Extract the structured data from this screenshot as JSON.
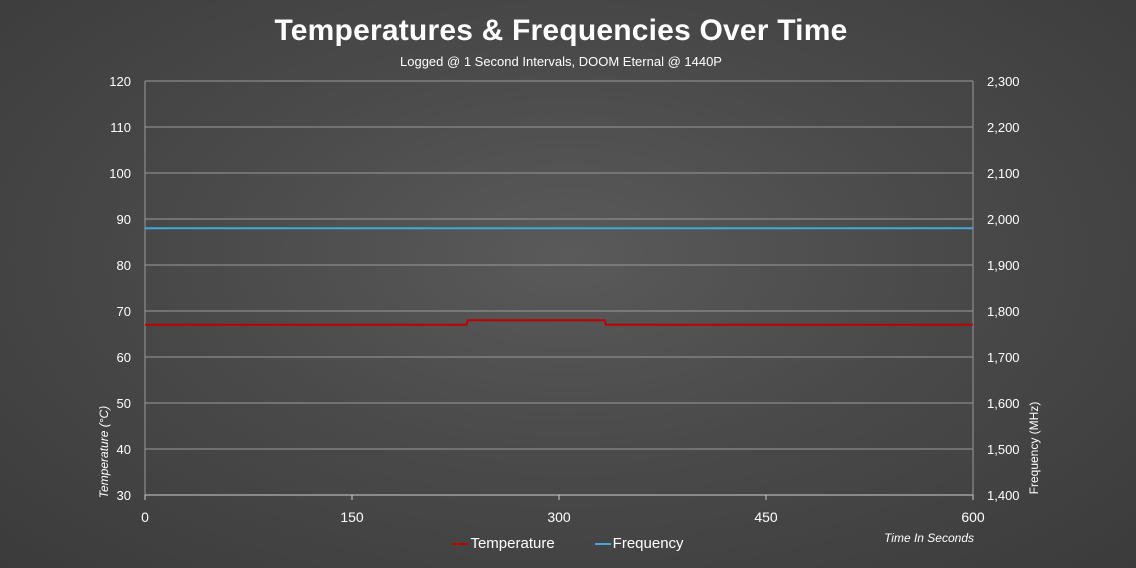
{
  "chart_data": {
    "type": "line",
    "title": "Temperatures & Frequencies Over Time",
    "subtitle": "Logged @ 1 Second Intervals, DOOM Eternal @ 1440P",
    "xlabel": "Time In Seconds",
    "ylabel": "Temperature (°C)",
    "y2label": "Frequency  (MHz)",
    "xlim": [
      0,
      600
    ],
    "ylim": [
      30,
      120
    ],
    "y2lim": [
      1400,
      2300
    ],
    "x_ticks": [
      "0",
      "150",
      "300",
      "450",
      "600"
    ],
    "y_ticks": [
      "120",
      "110",
      "100",
      "90",
      "80",
      "70",
      "60",
      "50",
      "40",
      "30"
    ],
    "y2_ticks": [
      "2,300",
      "2,200",
      "2,100",
      "2,000",
      "1,900",
      "1,800",
      "1,700",
      "1,600",
      "1,500",
      "1,400"
    ],
    "grid": true,
    "legend_position": "bottom",
    "series": [
      {
        "name": "Temperature",
        "axis": "left",
        "color": "#c00000",
        "x": [
          0,
          233,
          234,
          333,
          334,
          600
        ],
        "values": [
          67,
          67,
          68,
          68,
          67,
          67
        ]
      },
      {
        "name": "Frequency",
        "axis": "right",
        "color": "#3fa9d9",
        "x": [
          0,
          600
        ],
        "values": [
          1980,
          1980
        ]
      }
    ]
  }
}
